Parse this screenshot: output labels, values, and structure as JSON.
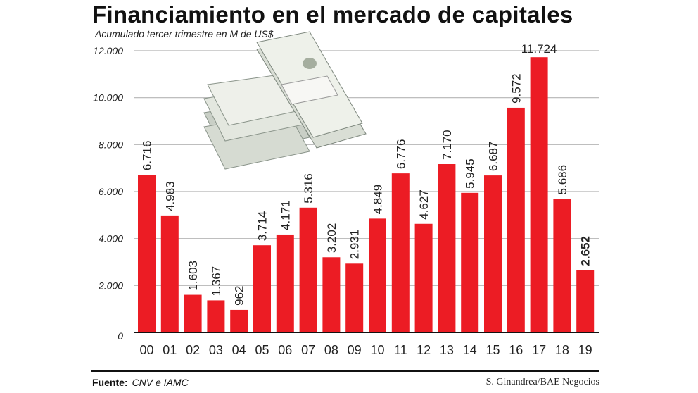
{
  "chart_data": {
    "type": "bar",
    "title": "Financiamiento en el mercado de capitales",
    "subtitle": "Acumulado tercer trimestre en M de US$",
    "categories": [
      "00",
      "01",
      "02",
      "03",
      "04",
      "05",
      "06",
      "07",
      "08",
      "09",
      "10",
      "11",
      "12",
      "13",
      "14",
      "15",
      "16",
      "17",
      "18",
      "19"
    ],
    "values": [
      6716,
      4983,
      1603,
      1367,
      962,
      3714,
      4171,
      5316,
      3202,
      2931,
      4849,
      6776,
      4627,
      7170,
      5945,
      6687,
      9572,
      11724,
      5686,
      2652
    ],
    "data_labels": [
      "6.716",
      "4.983",
      "1.603",
      "1.367",
      "962",
      "3.714",
      "4.171",
      "5.316",
      "3.202",
      "2.931",
      "4.849",
      "6.776",
      "4.627",
      "7.170",
      "5.945",
      "6.687",
      "9.572",
      "11.724",
      "5.686",
      "2.652"
    ],
    "ylim": [
      0,
      12000
    ],
    "yticks": [
      0,
      2000,
      4000,
      6000,
      8000,
      10000,
      12000
    ],
    "ytick_labels": [
      "0",
      "2.000",
      "4.000",
      "6.000",
      "8.000",
      "10.000",
      "12.000"
    ],
    "xlabel": "",
    "ylabel": "",
    "grid": true,
    "bar_color": "#ec1c24",
    "decoration": "money-stack-image"
  },
  "footer": {
    "source_label": "Fuente:",
    "source_value": "CNV e IAMC",
    "credit": "S. Ginandrea/BAE Negocios"
  }
}
